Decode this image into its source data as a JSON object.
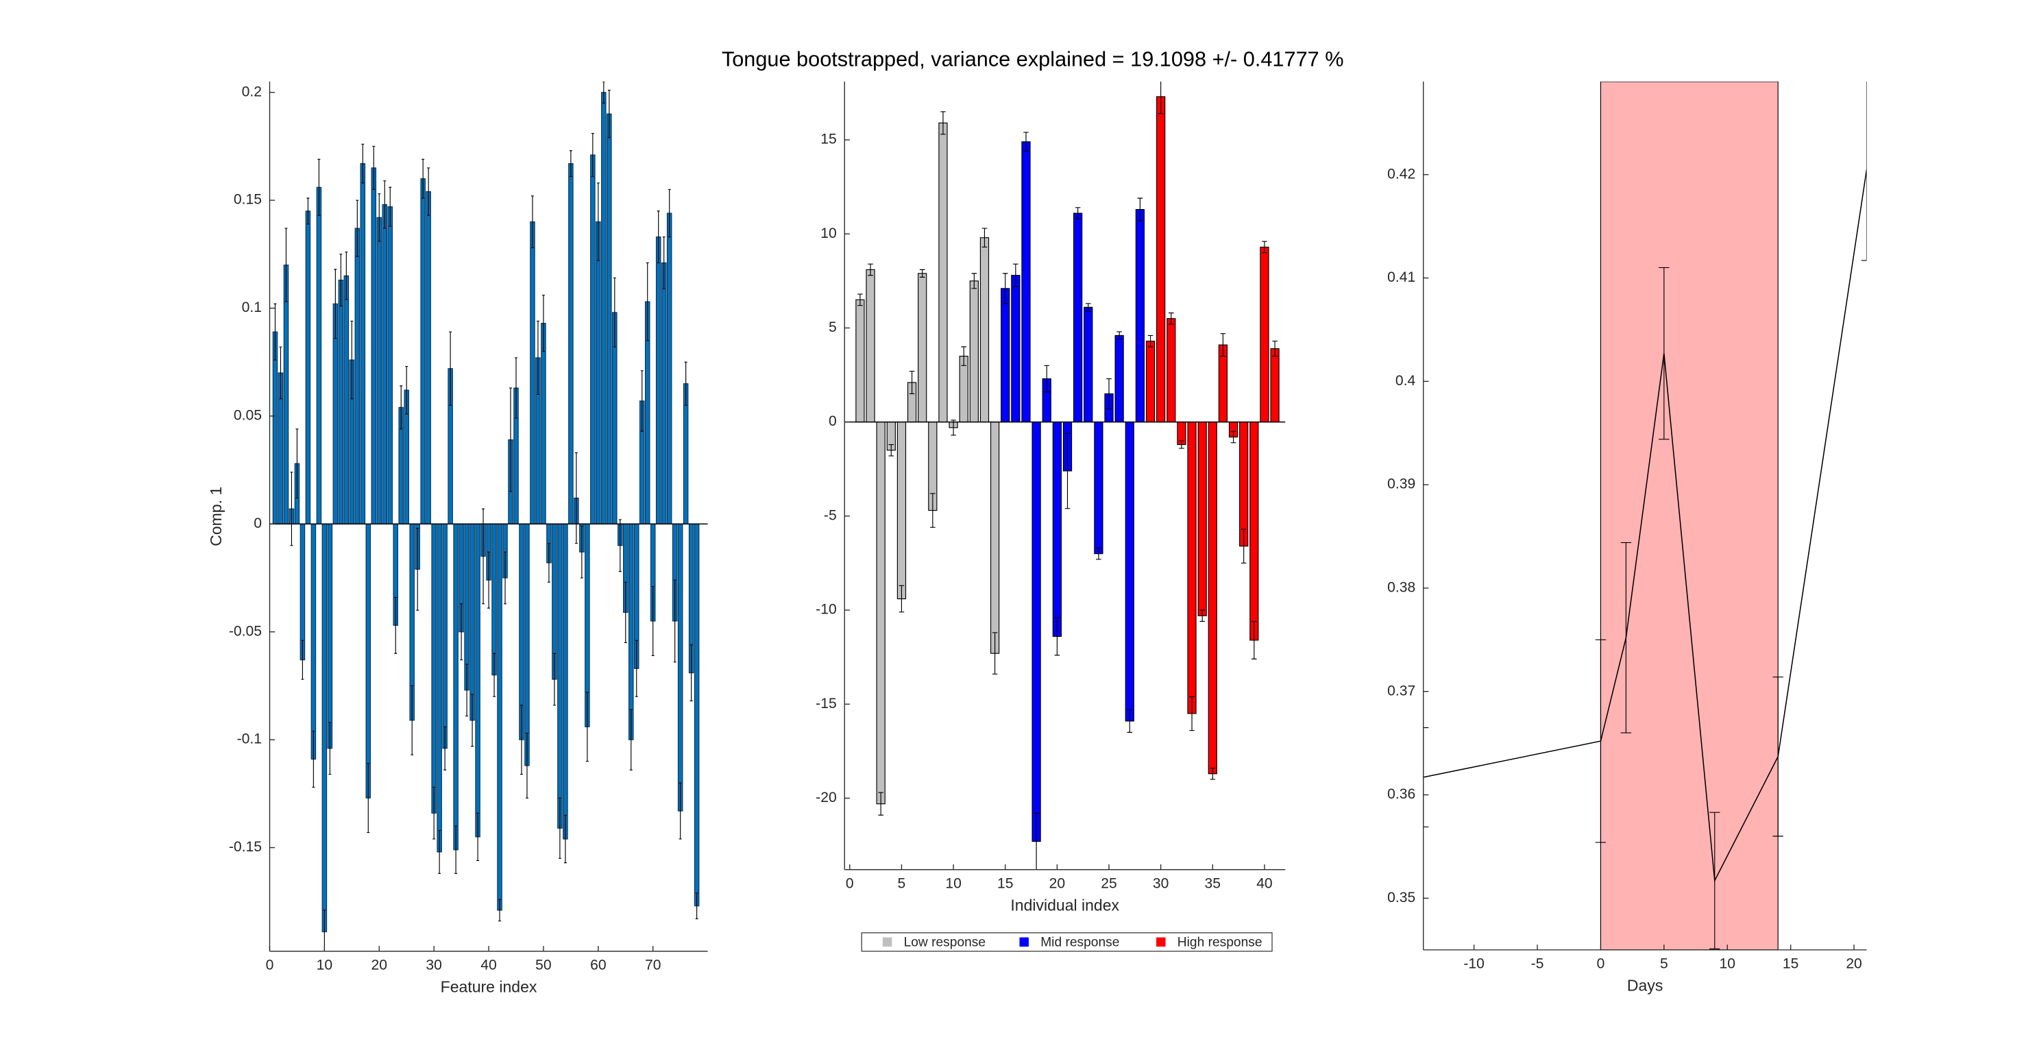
{
  "title": "Tongue bootstrapped, variance explained = 19.1098 +/- 0.41777 %",
  "chart_data": [
    {
      "type": "bar",
      "xlabel": "Feature index",
      "ylabel": "Comp. 1",
      "xlim": [
        0,
        80
      ],
      "ylim": [
        -0.198,
        0.205
      ],
      "xticks": [
        0,
        10,
        20,
        30,
        40,
        50,
        60,
        70
      ],
      "yticks": [
        -0.15,
        -0.1,
        -0.05,
        0,
        0.05,
        0.1,
        0.15,
        0.2
      ],
      "color": "#0072bd",
      "edgecolor": "#16324f",
      "x": [
        1,
        2,
        3,
        4,
        5,
        6,
        7,
        8,
        9,
        10,
        11,
        12,
        13,
        14,
        15,
        16,
        17,
        18,
        19,
        20,
        21,
        22,
        23,
        24,
        25,
        26,
        27,
        28,
        29,
        30,
        31,
        32,
        33,
        34,
        35,
        36,
        37,
        38,
        39,
        40,
        41,
        42,
        43,
        44,
        45,
        46,
        47,
        48,
        49,
        50,
        51,
        52,
        53,
        54,
        55,
        56,
        57,
        58,
        59,
        60,
        61,
        62,
        63,
        64,
        65,
        66,
        67,
        68,
        69,
        70,
        71,
        72,
        73,
        74,
        75,
        76,
        77,
        78
      ],
      "values": [
        0.089,
        0.07,
        0.12,
        0.007,
        0.028,
        -0.063,
        0.145,
        -0.109,
        0.156,
        -0.189,
        -0.104,
        0.102,
        0.113,
        0.115,
        0.076,
        0.137,
        0.167,
        -0.127,
        0.165,
        0.142,
        0.148,
        0.147,
        -0.047,
        0.054,
        0.062,
        -0.091,
        -0.021,
        0.16,
        0.154,
        -0.134,
        -0.152,
        -0.104,
        0.072,
        -0.151,
        -0.05,
        -0.077,
        -0.091,
        -0.145,
        -0.015,
        -0.026,
        -0.07,
        -0.179,
        -0.025,
        0.039,
        0.063,
        -0.1,
        -0.112,
        0.14,
        0.077,
        0.093,
        -0.018,
        -0.072,
        -0.141,
        -0.146,
        0.167,
        0.012,
        -0.013,
        -0.094,
        0.171,
        0.14,
        0.2,
        0.19,
        0.098,
        -0.01,
        -0.041,
        -0.1,
        -0.067,
        0.057,
        0.103,
        -0.045,
        0.133,
        0.121,
        0.144,
        -0.045,
        -0.133,
        0.065,
        -0.069,
        -0.177
      ],
      "errors": [
        0.013,
        0.012,
        0.017,
        0.017,
        0.016,
        0.009,
        0.006,
        0.013,
        0.013,
        0.01,
        0.012,
        0.016,
        0.012,
        0.011,
        0.018,
        0.013,
        0.009,
        0.016,
        0.01,
        0.011,
        0.011,
        0.009,
        0.013,
        0.01,
        0.011,
        0.016,
        0.019,
        0.009,
        0.011,
        0.012,
        0.01,
        0.01,
        0.017,
        0.011,
        0.013,
        0.012,
        0.012,
        0.011,
        0.022,
        0.013,
        0.01,
        0.005,
        0.012,
        0.024,
        0.014,
        0.016,
        0.015,
        0.012,
        0.017,
        0.013,
        0.009,
        0.012,
        0.014,
        0.011,
        0.006,
        0.021,
        0.012,
        0.016,
        0.01,
        0.018,
        0.005,
        0.011,
        0.016,
        0.012,
        0.014,
        0.014,
        0.013,
        0.014,
        0.018,
        0.016,
        0.012,
        0.012,
        0.011,
        0.019,
        0.013,
        0.01,
        0.013,
        0.006
      ]
    },
    {
      "type": "bar",
      "xlabel": "Individual index",
      "xlim": [
        -0.5,
        42
      ],
      "ylim": [
        -23.8,
        18.1
      ],
      "xticks": [
        0,
        5,
        10,
        15,
        20,
        25,
        30,
        35,
        40
      ],
      "yticks": [
        -20,
        -15,
        -10,
        -5,
        0,
        5,
        10,
        15
      ],
      "edgecolor": "#000000",
      "legend": "south-outside",
      "series": [
        {
          "name": "Low response",
          "color": "#bfbfbf",
          "x": [
            1,
            2,
            3,
            4,
            5,
            6,
            7,
            8,
            9,
            10,
            11,
            12,
            13,
            14
          ],
          "values": [
            6.5,
            8.1,
            -20.3,
            -1.5,
            -9.4,
            2.1,
            7.9,
            -4.7,
            15.9,
            -0.3,
            3.5,
            7.5,
            9.8,
            -12.3
          ],
          "errors": [
            0.3,
            0.3,
            0.6,
            0.3,
            0.7,
            0.6,
            0.2,
            0.9,
            0.6,
            0.4,
            0.5,
            0.4,
            0.5,
            1.1
          ]
        },
        {
          "name": "Mid response",
          "color": "#0000ff",
          "x": [
            15,
            16,
            17,
            18,
            19,
            20,
            21,
            22,
            23,
            24,
            25,
            26,
            27,
            28
          ],
          "values": [
            7.1,
            7.8,
            14.9,
            -22.3,
            2.3,
            -11.4,
            -2.6,
            11.1,
            6.1,
            -7.0,
            1.5,
            4.6,
            -15.9,
            11.3
          ],
          "errors": [
            0.8,
            0.6,
            0.5,
            1.5,
            0.7,
            1.0,
            2.0,
            0.3,
            0.2,
            0.3,
            0.8,
            0.2,
            0.6,
            0.6
          ]
        },
        {
          "name": "High response",
          "color": "#ff0000",
          "x": [
            29,
            30,
            31,
            32,
            33,
            34,
            35,
            36,
            37,
            38,
            39,
            40,
            41
          ],
          "values": [
            4.3,
            17.3,
            5.5,
            -1.2,
            -15.5,
            -10.3,
            -18.7,
            4.1,
            -0.8,
            -6.6,
            -11.6,
            9.3,
            3.9
          ],
          "errors": [
            0.3,
            0.9,
            0.3,
            0.2,
            0.9,
            0.3,
            0.3,
            0.6,
            0.3,
            0.9,
            1.0,
            0.3,
            0.4
          ]
        }
      ]
    },
    {
      "type": "line",
      "xlabel": "Days",
      "xlim": [
        -14,
        21
      ],
      "ylim": [
        0.345,
        0.429
      ],
      "xticks": [
        -10,
        -5,
        0,
        5,
        10,
        15,
        20
      ],
      "yticks": [
        0.35,
        0.36,
        0.37,
        0.38,
        0.39,
        0.4,
        0.41,
        0.42
      ],
      "shaded_region": {
        "x": [
          0,
          14
        ],
        "color": "#ffb3b3"
      },
      "series": [
        {
          "color": "#000000",
          "x": [
            -14,
            0,
            2,
            5,
            9,
            14,
            21
          ],
          "values": [
            0.3617,
            0.3652,
            0.3752,
            0.4027,
            0.3517,
            0.3637,
            0.4205
          ],
          "errors": [
            0.0048,
            0.0098,
            0.0092,
            0.0083,
            0.0066,
            0.0077,
            0.0088
          ]
        }
      ]
    }
  ]
}
